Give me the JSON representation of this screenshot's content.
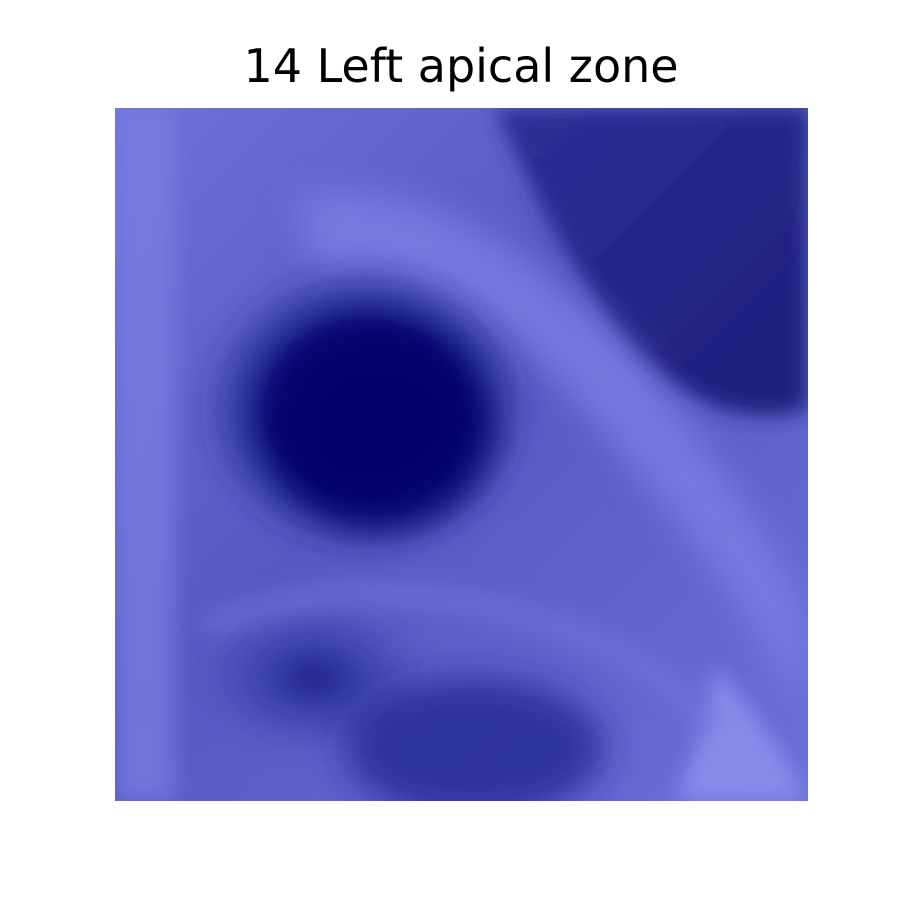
{
  "figure": {
    "title": "14 Left apical zone",
    "image_icon": "xray-lung-zone-icon",
    "colormap": {
      "dark": "#050868",
      "mid": "#5a5fc8",
      "light": "#8d92ee"
    }
  }
}
